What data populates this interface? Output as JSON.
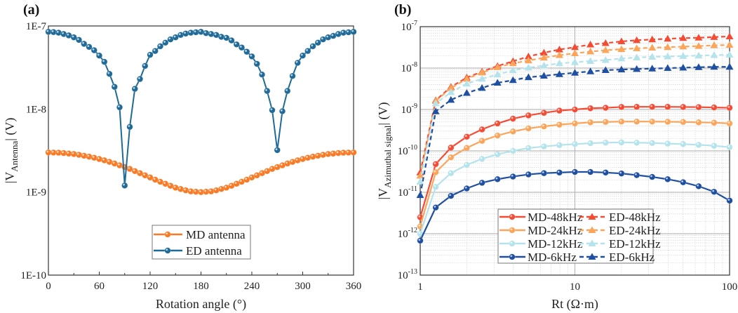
{
  "chart_data": [
    {
      "panel_label": "(a)",
      "type": "line",
      "xlabel": "Rotation angle (°)",
      "ylabel": {
        "prefix": "|V",
        "subscript": "Antenna",
        "suffix": "| (V)"
      },
      "xlim": [
        0,
        360
      ],
      "ylim": [
        1e-10,
        1e-07
      ],
      "yscale": "log",
      "xticks": [
        "0",
        "60",
        "120",
        "180",
        "240",
        "300",
        "360"
      ],
      "xtick_values": [
        0,
        60,
        120,
        180,
        240,
        300,
        360
      ],
      "yticks": [
        "1E-10",
        "1E-9",
        "1E-8",
        "1E-7"
      ],
      "ytick_values": [
        1e-10,
        1e-09,
        1e-08,
        1e-07
      ],
      "legend_position": "bottom-center",
      "x_step": 6,
      "series": [
        {
          "name": "MD antenna",
          "color": "#f97a25",
          "values": [
            3e-09,
            2.99e-09,
            2.98e-09,
            2.95e-09,
            2.91e-09,
            2.87e-09,
            2.81e-09,
            2.74e-09,
            2.67e-09,
            2.59e-09,
            2.5e-09,
            2.41e-09,
            2.31e-09,
            2.21e-09,
            2.1e-09,
            2e-09,
            1.9e-09,
            1.79e-09,
            1.69e-09,
            1.59e-09,
            1.5e-09,
            1.41e-09,
            1.33e-09,
            1.26e-09,
            1.19e-09,
            1.13e-09,
            1.09e-09,
            1.05e-09,
            1.02e-09,
            1.01e-09,
            1e-09,
            1.01e-09,
            1.02e-09,
            1.05e-09,
            1.09e-09,
            1.13e-09,
            1.19e-09,
            1.26e-09,
            1.33e-09,
            1.41e-09,
            1.5e-09,
            1.59e-09,
            1.69e-09,
            1.79e-09,
            1.9e-09,
            2e-09,
            2.1e-09,
            2.21e-09,
            2.31e-09,
            2.41e-09,
            2.5e-09,
            2.59e-09,
            2.67e-09,
            2.74e-09,
            2.81e-09,
            2.87e-09,
            2.91e-09,
            2.95e-09,
            2.98e-09,
            2.99e-09,
            3e-09
          ]
        },
        {
          "name": "ED antenna",
          "color": "#1f6a96",
          "values": [
            8.5e-08,
            8.45e-08,
            8.3e-08,
            8e-08,
            7.7e-08,
            7.3e-08,
            6.8e-08,
            6.1e-08,
            5.6e-08,
            5.1e-08,
            4.4e-08,
            3.7e-08,
            2.65e-08,
            1.85e-08,
            1.05e-08,
            1.2e-09,
            6.1e-09,
            1.75e-08,
            2.3e-08,
            3.3e-08,
            4.5e-08,
            5e-08,
            5.7e-08,
            6.3e-08,
            6.9e-08,
            7.3e-08,
            7.8e-08,
            8.1e-08,
            8.3e-08,
            8.4e-08,
            8.5e-08,
            8.2e-08,
            8e-08,
            7.8e-08,
            7.4e-08,
            7.2e-08,
            6.7e-08,
            6e-08,
            5.5e-08,
            4.9e-08,
            4.3e-08,
            3.5e-08,
            2.6e-08,
            1.65e-08,
            9.7e-09,
            3.2e-09,
            9.4e-09,
            1.65e-08,
            2.5e-08,
            3.6e-08,
            4.4e-08,
            5e-08,
            5.7e-08,
            6.3e-08,
            6.9e-08,
            7.3e-08,
            7.6e-08,
            8e-08,
            8.3e-08,
            8.4e-08,
            8.5e-08
          ]
        }
      ]
    },
    {
      "panel_label": "(b)",
      "type": "line",
      "xlabel": "Rt (Ω·m)",
      "ylabel": {
        "prefix": "|V",
        "subscript": "Azimuthal signal",
        "suffix": "| (V)"
      },
      "xlim": [
        1,
        100
      ],
      "xscale": "log",
      "ylim": [
        1e-13,
        1e-07
      ],
      "yscale": "log",
      "grid": true,
      "xticks": [
        "1",
        "10",
        "100"
      ],
      "xtick_values": [
        1,
        10,
        100
      ],
      "yticks": [
        {
          "base": "10",
          "exp": "-13"
        },
        {
          "base": "10",
          "exp": "-12"
        },
        {
          "base": "10",
          "exp": "-11"
        },
        {
          "base": "10",
          "exp": "-10"
        },
        {
          "base": "10",
          "exp": "-9"
        },
        {
          "base": "10",
          "exp": "-8"
        },
        {
          "base": "10",
          "exp": "-7"
        }
      ],
      "ytick_values": [
        1e-13,
        1e-12,
        1e-11,
        1e-10,
        1e-09,
        1e-08,
        1e-07
      ],
      "legend_position": "bottom-center",
      "x": [
        1,
        1.26,
        1.58,
        2,
        2.51,
        3.16,
        3.98,
        5.01,
        6.31,
        7.94,
        10,
        12.6,
        15.8,
        20,
        25.1,
        31.6,
        39.8,
        50.1,
        63.1,
        79.4,
        100
      ],
      "series": [
        {
          "name": "MD-48kHz",
          "color": "#f44b35",
          "style": "solid",
          "marker": "circle",
          "values": [
            2.5e-12,
            4.8e-11,
            1.2e-10,
            2.2e-10,
            3.3e-10,
            4.6e-10,
            6e-10,
            7.2e-10,
            8.3e-10,
            9.4e-10,
            1e-09,
            1.07e-09,
            1.1e-09,
            1.15e-09,
            1.16e-09,
            1.16e-09,
            1.16e-09,
            1.15e-09,
            1.14e-09,
            1.12e-09,
            1.1e-09
          ]
        },
        {
          "name": "ED-48kHz",
          "color": "#f44b35",
          "style": "dashed",
          "marker": "triangle",
          "values": [
            3e-11,
            1.66e-09,
            3.5e-09,
            5.9e-09,
            8.2e-09,
            1.12e-08,
            1.46e-08,
            1.9e-08,
            2.35e-08,
            2.8e-08,
            3.2e-08,
            3.7e-08,
            4e-08,
            4.4e-08,
            4.7e-08,
            4.9e-08,
            5.1e-08,
            5.3e-08,
            5.4e-08,
            5.6e-08,
            5.8e-08
          ]
        },
        {
          "name": "MD-24kHz",
          "color": "#fba55a",
          "style": "solid",
          "marker": "circle",
          "values": [
            1.5e-12,
            3.06e-11,
            7e-11,
            1.18e-10,
            1.75e-10,
            2.35e-10,
            2.95e-10,
            3.5e-10,
            3.9e-10,
            4.3e-10,
            4.6e-10,
            4.9e-10,
            5e-10,
            5.1e-10,
            5.1e-10,
            5.1e-10,
            5.05e-10,
            5e-10,
            4.9e-10,
            4.8e-10,
            4.6e-10
          ]
        },
        {
          "name": "ED-24kHz",
          "color": "#fba55a",
          "style": "dashed",
          "marker": "triangle",
          "values": [
            2.5e-11,
            1.6e-09,
            3.3e-09,
            5.5e-09,
            7.8e-09,
            1.05e-08,
            1.3e-08,
            1.52e-08,
            1.78e-08,
            2.05e-08,
            2.27e-08,
            2.5e-08,
            2.7e-08,
            2.85e-08,
            3e-08,
            3.1e-08,
            3.2e-08,
            3.3e-08,
            3.4e-08,
            3.55e-08,
            3.6e-08
          ]
        },
        {
          "name": "MD-12kHz",
          "color": "#b5e3ec",
          "style": "solid",
          "marker": "circle",
          "values": [
            1e-12,
            1.35e-11,
            2.9e-11,
            4.6e-11,
            6.4e-11,
            8.3e-11,
            1e-10,
            1.17e-10,
            1.28e-10,
            1.38e-10,
            1.46e-10,
            1.53e-10,
            1.58e-10,
            1.6e-10,
            1.58e-10,
            1.55e-10,
            1.5e-10,
            1.46e-10,
            1.4e-10,
            1.33e-10,
            1.23e-10
          ]
        },
        {
          "name": "ED-12kHz",
          "color": "#b5e3ec",
          "style": "dashed",
          "marker": "triangle",
          "values": [
            1.8e-11,
            1.4e-09,
            2.6e-09,
            4.2e-09,
            5.5e-09,
            7e-09,
            8.8e-09,
            1.02e-08,
            1.15e-08,
            1.3e-08,
            1.38e-08,
            1.48e-08,
            1.56e-08,
            1.7e-08,
            1.8e-08,
            1.87e-08,
            1.9e-08,
            1.95e-08,
            2e-08,
            2.05e-08,
            2.1e-08
          ]
        },
        {
          "name": "MD-6kHz",
          "color": "#1f4fa0",
          "style": "solid",
          "marker": "circle",
          "values": [
            6.8e-13,
            4.3e-12,
            8.2e-12,
            1.24e-11,
            1.7e-11,
            2.07e-11,
            2.4e-11,
            2.7e-11,
            2.9e-11,
            3e-11,
            3.1e-11,
            3.1e-11,
            3e-11,
            2.85e-11,
            2.6e-11,
            2.35e-11,
            2.07e-11,
            1.75e-11,
            1.4e-11,
            1.03e-11,
            6.3e-12
          ]
        },
        {
          "name": "ED-6kHz",
          "color": "#1f4fa0",
          "style": "dashed",
          "marker": "triangle",
          "values": [
            8.5e-12,
            9e-10,
            1.7e-09,
            2.5e-09,
            3.3e-09,
            4.4e-09,
            5.1e-09,
            6e-09,
            6.5e-09,
            7.1e-09,
            7.7e-09,
            8.3e-09,
            8.9e-09,
            9.2e-09,
            9.5e-09,
            9.7e-09,
            1e-08,
            1.02e-08,
            1.05e-08,
            1.07e-08,
            1.07e-08
          ]
        }
      ]
    }
  ]
}
